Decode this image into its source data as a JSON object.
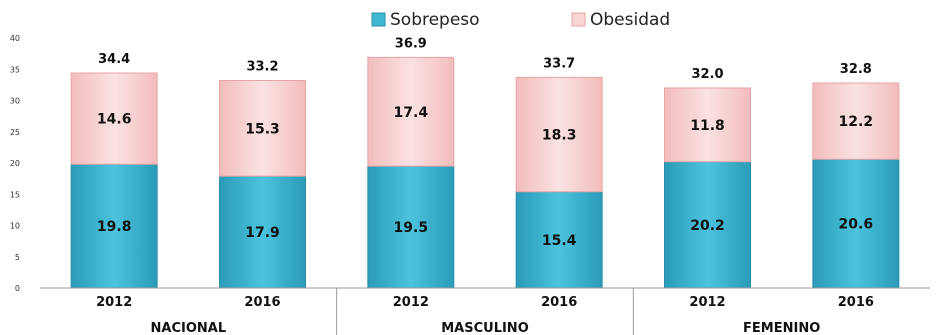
{
  "chart_data": {
    "type": "bar",
    "stacked": true,
    "legend": {
      "position": "top-center"
    },
    "ylim": [
      0,
      40
    ],
    "yticks": [
      "0",
      "5",
      "10",
      "15",
      "20",
      "25",
      "30",
      "35",
      "40"
    ],
    "groups": [
      {
        "name": "NACIONAL",
        "categories": [
          "2012",
          "2016"
        ]
      },
      {
        "name": "MASCULINO",
        "categories": [
          "2012",
          "2016"
        ]
      },
      {
        "name": "FEMENINO",
        "categories": [
          "2012",
          "2016"
        ]
      }
    ],
    "categories": [
      "2012",
      "2016",
      "2012",
      "2016",
      "2012",
      "2016"
    ],
    "series": [
      {
        "name": "Sobrepeso",
        "color": "#3fb7d1",
        "values": [
          19.8,
          17.9,
          19.5,
          15.4,
          20.2,
          20.6
        ],
        "labels": [
          "19.8",
          "17.9",
          "19.5",
          "15.4",
          "20.2",
          "20.6"
        ]
      },
      {
        "name": "Obesidad",
        "color": "#f7d3d3",
        "values": [
          14.6,
          15.3,
          17.4,
          18.3,
          11.8,
          12.2
        ],
        "labels": [
          "14.6",
          "15.3",
          "17.4",
          "18.3",
          "11.8",
          "12.2"
        ]
      }
    ],
    "totals": [
      "34.4",
      "33.2",
      "36.9",
      "33.7",
      "32.0",
      "32.8"
    ]
  }
}
